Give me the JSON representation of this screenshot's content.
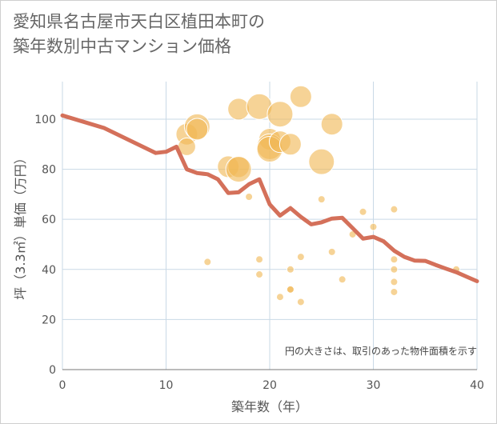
{
  "chart_data": {
    "type": "scatter",
    "title": "愛知県名古屋市天白区植田本町の\n築年数別中古マンション価格",
    "xlabel": "築年数（年）",
    "ylabel": "坪（3.3㎡）単価（万円）",
    "xlim": [
      0,
      40
    ],
    "ylim": [
      0,
      115
    ],
    "xticks": [
      0,
      10,
      20,
      30,
      40
    ],
    "yticks": [
      0,
      20,
      40,
      60,
      80,
      100
    ],
    "grid": true,
    "note": "円の大きさは、取引のあった物件面積を示す",
    "colors": {
      "bubble": "#f0b856",
      "line": "#d4705a",
      "grid": "#c9d9e6"
    },
    "points": [
      {
        "x": 12,
        "y": 94,
        "s": 3
      },
      {
        "x": 12,
        "y": 89,
        "s": 2
      },
      {
        "x": 13,
        "y": 97,
        "s": 4
      },
      {
        "x": 13,
        "y": 96,
        "s": 3
      },
      {
        "x": 14,
        "y": 43,
        "s": 0
      },
      {
        "x": 16,
        "y": 81,
        "s": 3
      },
      {
        "x": 17,
        "y": 104,
        "s": 3
      },
      {
        "x": 17,
        "y": 81,
        "s": 3
      },
      {
        "x": 17,
        "y": 80,
        "s": 4
      },
      {
        "x": 18,
        "y": 69,
        "s": 0
      },
      {
        "x": 19,
        "y": 105,
        "s": 4
      },
      {
        "x": 19,
        "y": 44,
        "s": 0
      },
      {
        "x": 19,
        "y": 38,
        "s": 0
      },
      {
        "x": 20,
        "y": 92,
        "s": 3
      },
      {
        "x": 20,
        "y": 89,
        "s": 4
      },
      {
        "x": 20,
        "y": 88,
        "s": 4
      },
      {
        "x": 21,
        "y": 102,
        "s": 4
      },
      {
        "x": 21,
        "y": 91,
        "s": 3
      },
      {
        "x": 21,
        "y": 29,
        "s": 0
      },
      {
        "x": 22,
        "y": 90,
        "s": 3
      },
      {
        "x": 22,
        "y": 40,
        "s": 0
      },
      {
        "x": 22,
        "y": 32,
        "s": 0
      },
      {
        "x": 22,
        "y": 32,
        "s": 0
      },
      {
        "x": 23,
        "y": 109,
        "s": 3
      },
      {
        "x": 23,
        "y": 45,
        "s": 0
      },
      {
        "x": 23,
        "y": 27,
        "s": 0
      },
      {
        "x": 25,
        "y": 83,
        "s": 4
      },
      {
        "x": 25,
        "y": 68,
        "s": 0
      },
      {
        "x": 26,
        "y": 98,
        "s": 3
      },
      {
        "x": 26,
        "y": 47,
        "s": 0
      },
      {
        "x": 27,
        "y": 36,
        "s": 0
      },
      {
        "x": 28,
        "y": 54,
        "s": 0
      },
      {
        "x": 29,
        "y": 63,
        "s": 0
      },
      {
        "x": 30,
        "y": 57,
        "s": 0
      },
      {
        "x": 32,
        "y": 64,
        "s": 0
      },
      {
        "x": 32,
        "y": 44,
        "s": 0
      },
      {
        "x": 32,
        "y": 40,
        "s": 0
      },
      {
        "x": 32,
        "y": 35,
        "s": 0
      },
      {
        "x": 32,
        "y": 31,
        "s": 0
      },
      {
        "x": 38,
        "y": 40,
        "s": 0
      }
    ],
    "trend": {
      "x": [
        0,
        4,
        9,
        10,
        11,
        12,
        13,
        14,
        15,
        16,
        17,
        18,
        19,
        20,
        21,
        22,
        23,
        24,
        25,
        26,
        27,
        28,
        29,
        30,
        31,
        32,
        33,
        34,
        35,
        36,
        37,
        38,
        39,
        40
      ],
      "y": [
        101.5,
        96.5,
        86.5,
        87,
        89,
        80,
        78.5,
        78,
        76,
        70.5,
        70.8,
        74,
        76,
        66,
        61.5,
        64.5,
        61,
        58,
        58.8,
        60.3,
        60.6,
        56.5,
        52.3,
        53,
        51.2,
        47.5,
        45,
        43.5,
        43.4,
        41.8,
        40.3,
        38.9,
        37.1,
        35.3
      ]
    }
  }
}
